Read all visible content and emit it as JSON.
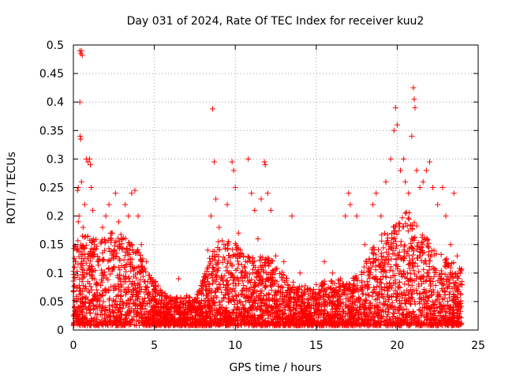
{
  "chart_data": {
    "type": "scatter",
    "title": "Day 031 of 2024, Rate Of TEC Index for receiver kuu2",
    "xlabel": "GPS time / hours",
    "ylabel": "ROTI / TECUs",
    "xlim": [
      0,
      25
    ],
    "ylim": [
      0,
      0.5
    ],
    "x_ticks": [
      0,
      5,
      10,
      15,
      20,
      25
    ],
    "x_tick_labels": [
      "0",
      "5",
      "10",
      "15",
      "20",
      "25"
    ],
    "y_ticks": [
      0,
      0.05,
      0.1,
      0.15,
      0.2,
      0.25,
      0.3,
      0.35,
      0.4,
      0.45,
      0.5
    ],
    "y_tick_labels": [
      "0",
      "0.05",
      "0.1",
      "0.15",
      "0.2",
      "0.25",
      "0.3",
      "0.35",
      "0.4",
      "0.45",
      "0.5"
    ],
    "grid": true,
    "marker": "+",
    "series_color": "#ff0000",
    "points": [
      [
        0.1,
        0.02
      ],
      [
        0.2,
        0.05
      ],
      [
        0.3,
        0.19
      ],
      [
        0.35,
        0.2
      ],
      [
        0.4,
        0.49
      ],
      [
        0.45,
        0.485
      ],
      [
        0.5,
        0.49
      ],
      [
        0.55,
        0.482
      ],
      [
        0.4,
        0.4
      ],
      [
        0.42,
        0.34
      ],
      [
        0.45,
        0.335
      ],
      [
        0.5,
        0.26
      ],
      [
        0.3,
        0.25
      ],
      [
        0.25,
        0.245
      ],
      [
        0.6,
        0.18
      ],
      [
        0.7,
        0.22
      ],
      [
        0.8,
        0.3
      ],
      [
        0.9,
        0.295
      ],
      [
        1.0,
        0.3
      ],
      [
        1.05,
        0.29
      ],
      [
        1.1,
        0.25
      ],
      [
        1.2,
        0.21
      ],
      [
        1.3,
        0.15
      ],
      [
        1.5,
        0.12
      ],
      [
        1.8,
        0.18
      ],
      [
        2.0,
        0.2
      ],
      [
        2.2,
        0.22
      ],
      [
        2.4,
        0.17
      ],
      [
        2.6,
        0.24
      ],
      [
        2.8,
        0.19
      ],
      [
        3.0,
        0.16
      ],
      [
        3.2,
        0.22
      ],
      [
        3.4,
        0.2
      ],
      [
        3.6,
        0.24
      ],
      [
        3.8,
        0.245
      ],
      [
        4.0,
        0.2
      ],
      [
        4.2,
        0.15
      ],
      [
        4.5,
        0.12
      ],
      [
        4.8,
        0.09
      ],
      [
        5.0,
        0.07
      ],
      [
        5.5,
        0.06
      ],
      [
        6.0,
        0.04
      ],
      [
        6.5,
        0.09
      ],
      [
        7.0,
        0.06
      ],
      [
        7.5,
        0.05
      ],
      [
        8.0,
        0.07
      ],
      [
        8.3,
        0.14
      ],
      [
        8.5,
        0.2
      ],
      [
        8.6,
        0.388
      ],
      [
        8.7,
        0.295
      ],
      [
        8.8,
        0.23
      ],
      [
        9.0,
        0.18
      ],
      [
        9.3,
        0.15
      ],
      [
        9.5,
        0.22
      ],
      [
        9.8,
        0.295
      ],
      [
        9.9,
        0.28
      ],
      [
        10.0,
        0.25
      ],
      [
        10.2,
        0.17
      ],
      [
        10.5,
        0.13
      ],
      [
        10.8,
        0.3
      ],
      [
        11.0,
        0.24
      ],
      [
        11.2,
        0.21
      ],
      [
        11.4,
        0.16
      ],
      [
        11.6,
        0.23
      ],
      [
        11.8,
        0.295
      ],
      [
        11.85,
        0.29
      ],
      [
        12.0,
        0.24
      ],
      [
        12.2,
        0.21
      ],
      [
        12.5,
        0.13
      ],
      [
        13.0,
        0.12
      ],
      [
        13.5,
        0.2
      ],
      [
        14.0,
        0.1
      ],
      [
        14.5,
        0.07
      ],
      [
        15.0,
        0.08
      ],
      [
        15.5,
        0.12
      ],
      [
        16.0,
        0.1
      ],
      [
        16.5,
        0.09
      ],
      [
        16.8,
        0.2
      ],
      [
        17.0,
        0.24
      ],
      [
        17.1,
        0.22
      ],
      [
        17.5,
        0.2
      ],
      [
        18.0,
        0.15
      ],
      [
        18.5,
        0.22
      ],
      [
        18.7,
        0.24
      ],
      [
        19.0,
        0.2
      ],
      [
        19.3,
        0.26
      ],
      [
        19.6,
        0.3
      ],
      [
        19.8,
        0.35
      ],
      [
        19.9,
        0.39
      ],
      [
        20.0,
        0.36
      ],
      [
        20.2,
        0.28
      ],
      [
        20.4,
        0.3
      ],
      [
        20.5,
        0.26
      ],
      [
        20.7,
        0.24
      ],
      [
        20.9,
        0.34
      ],
      [
        21.0,
        0.425
      ],
      [
        21.05,
        0.405
      ],
      [
        21.1,
        0.39
      ],
      [
        21.2,
        0.28
      ],
      [
        21.4,
        0.25
      ],
      [
        21.6,
        0.26
      ],
      [
        21.8,
        0.28
      ],
      [
        22.0,
        0.295
      ],
      [
        22.2,
        0.25
      ],
      [
        22.5,
        0.22
      ],
      [
        22.8,
        0.25
      ],
      [
        23.0,
        0.2
      ],
      [
        23.3,
        0.15
      ],
      [
        23.5,
        0.24
      ],
      [
        23.7,
        0.13
      ],
      [
        23.9,
        0.1
      ],
      [
        24.0,
        0.08
      ]
    ],
    "density_envelope": {
      "x": [
        0,
        0.5,
        1,
        1.5,
        2,
        2.5,
        3,
        3.5,
        4,
        4.5,
        5,
        5.5,
        6,
        6.5,
        7,
        7.5,
        8,
        8.5,
        9,
        9.5,
        10,
        10.5,
        11,
        11.5,
        12,
        12.5,
        13,
        13.5,
        14,
        14.5,
        15,
        15.5,
        16,
        16.5,
        17,
        17.5,
        18,
        18.5,
        19,
        19.5,
        20,
        20.5,
        21,
        21.5,
        22,
        22.5,
        23,
        23.5,
        24
      ],
      "y_max": [
        0.14,
        0.16,
        0.17,
        0.15,
        0.16,
        0.17,
        0.16,
        0.15,
        0.14,
        0.1,
        0.08,
        0.06,
        0.05,
        0.05,
        0.05,
        0.05,
        0.08,
        0.13,
        0.15,
        0.15,
        0.15,
        0.13,
        0.12,
        0.12,
        0.13,
        0.11,
        0.09,
        0.08,
        0.07,
        0.07,
        0.07,
        0.08,
        0.08,
        0.08,
        0.08,
        0.09,
        0.11,
        0.14,
        0.16,
        0.17,
        0.18,
        0.2,
        0.2,
        0.17,
        0.15,
        0.13,
        0.12,
        0.11,
        0.1
      ]
    }
  }
}
